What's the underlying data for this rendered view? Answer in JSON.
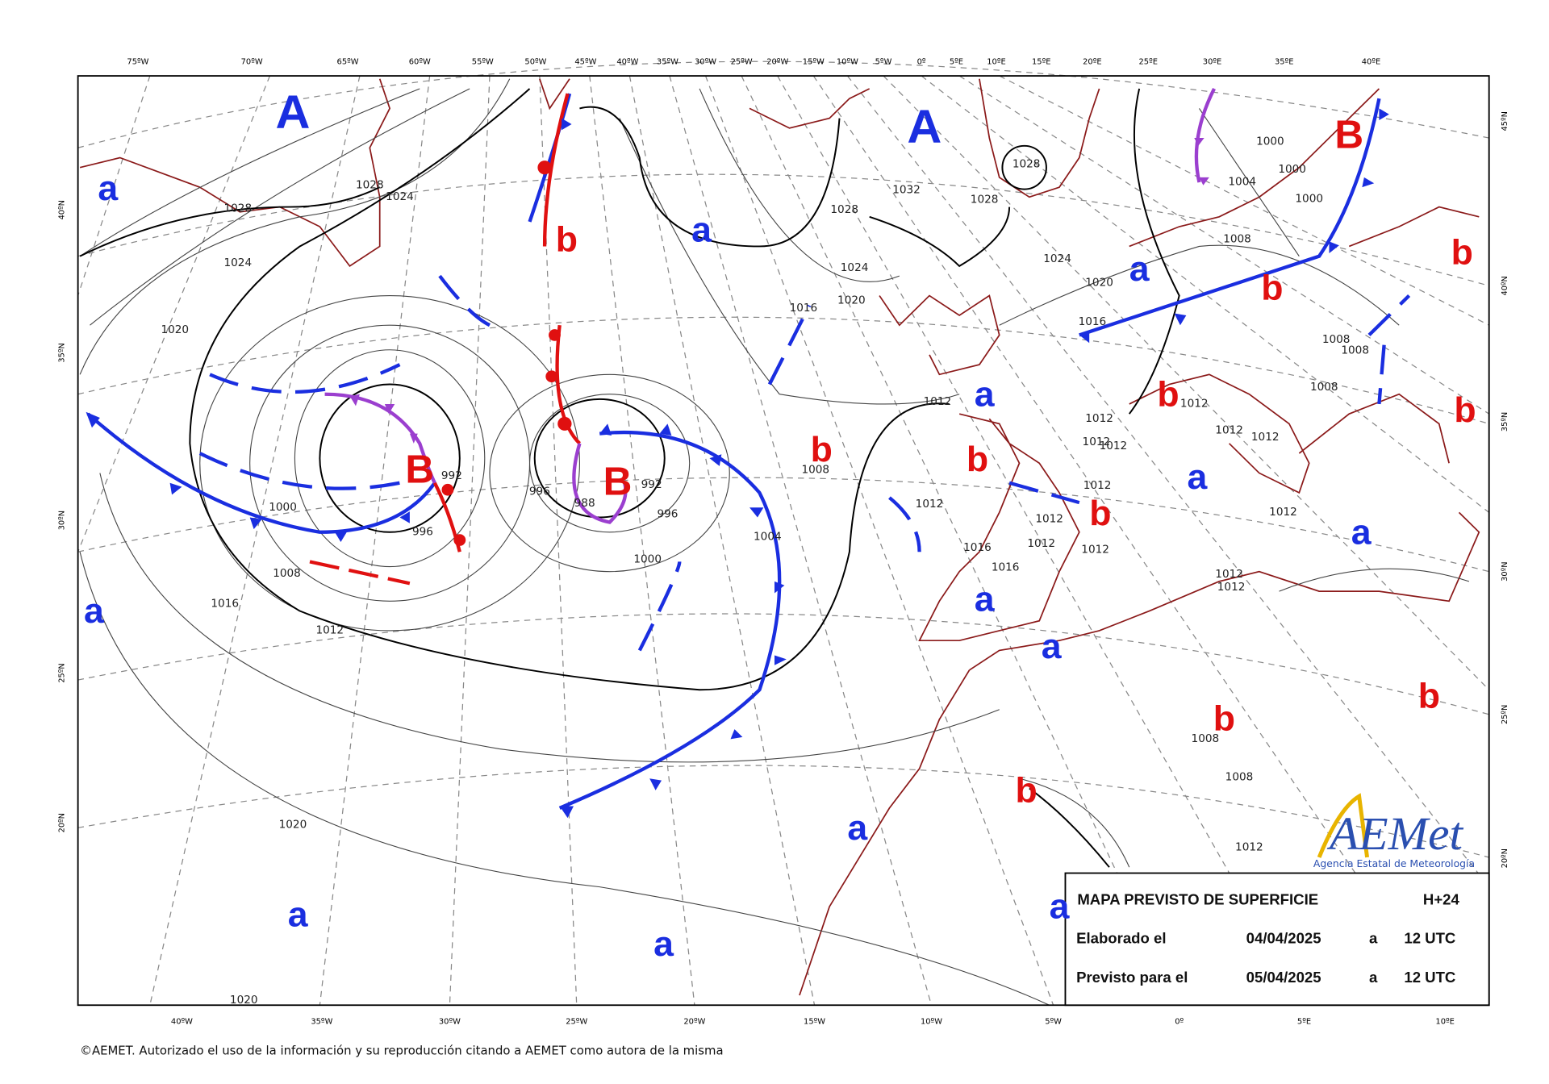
{
  "top_axis_labels": [
    "75ºW",
    "70ºW",
    "65ºW",
    "60ºW",
    "55ºW",
    "50ºW",
    "45ºW",
    "40ºW",
    "35ºW",
    "30ºW",
    "25ºW",
    "20ºW",
    "15ºW",
    "10ºW",
    "5ºW",
    "0º",
    "5ºE",
    "10ºE",
    "15ºE",
    "20ºE",
    "25ºE",
    "30ºE",
    "35ºE",
    "40ºE"
  ],
  "bottom_axis_labels": [
    "40ºW",
    "35ºW",
    "30ºW",
    "25ºW",
    "20ºW",
    "15ºW",
    "10ºW",
    "5ºW",
    "0º",
    "5ºE",
    "10ºE"
  ],
  "left_axis_labels": [
    "40ºN",
    "35ºN",
    "30ºN",
    "25ºN",
    "20ºN"
  ],
  "right_axis_labels": [
    "45ºN",
    "40ºN",
    "35ºN",
    "30ºN",
    "25ºN",
    "20ºN"
  ],
  "pressure_centers": [
    "A",
    "a",
    "A",
    "B",
    "a",
    "b",
    "b",
    "a",
    "b",
    "a",
    "b",
    "b",
    "B",
    "B",
    "b",
    "b",
    "a",
    "b",
    "a",
    "a",
    "a",
    "a",
    "b",
    "b",
    "b",
    "a",
    "a",
    "a",
    "a"
  ],
  "isobar_labels": [
    "1028",
    "1024",
    "1028",
    "1024",
    "1020",
    "1028",
    "1032",
    "1028",
    "1028",
    "1024",
    "1020",
    "1016",
    "1012",
    "1024",
    "1020",
    "1016",
    "1000",
    "1000",
    "1000",
    "1004",
    "1008",
    "1008",
    "1008",
    "1008",
    "1012",
    "1012",
    "1012",
    "1012",
    "1012",
    "1012",
    "1012",
    "1012",
    "1012",
    "1012",
    "1012",
    "1008",
    "1004",
    "1000",
    "996",
    "996",
    "992",
    "988",
    "992",
    "996",
    "1000",
    "1008",
    "1016",
    "1012",
    "1016",
    "1016",
    "1012",
    "1012",
    "1012",
    "1008",
    "1008",
    "1012",
    "1020",
    "1020"
  ],
  "legend": {
    "title": "MAPA PREVISTO DE SUPERFICIE",
    "lead_time": "H+24",
    "rows": [
      [
        "Elaborado el",
        "04/04/2025",
        "a",
        "12 UTC"
      ],
      [
        "Previsto para el",
        "05/04/2025",
        "a",
        "12 UTC"
      ]
    ]
  },
  "logo": {
    "name": "AEMet",
    "subtitle": "Agencia Estatal de Meteorología"
  },
  "copyright": "©AEMET. Autorizado el uso de la información y su reproducción citando a AEMET como autora de la misma"
}
